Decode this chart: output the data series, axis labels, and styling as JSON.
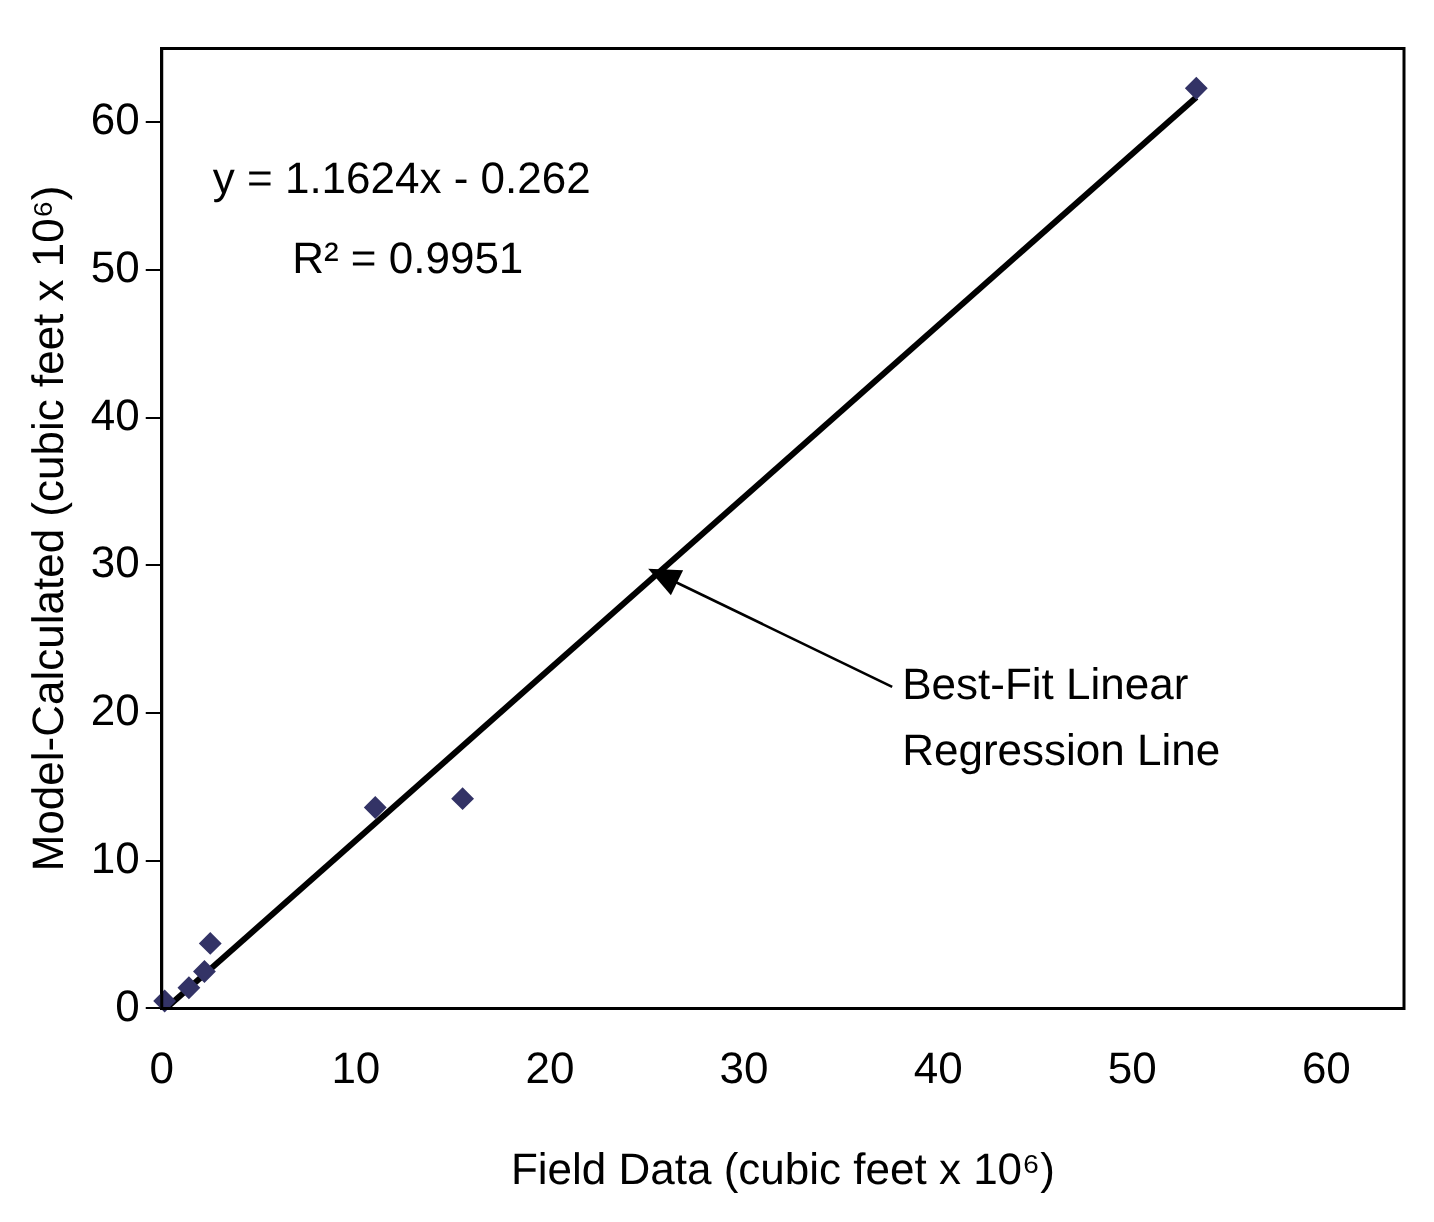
{
  "chart_data": {
    "type": "scatter",
    "xlabel": "Field Data (cubic feet x 10⁶)",
    "ylabel": "Model-Calculated (cubic feet x 10⁶)",
    "x": [
      0.15,
      1.4,
      2.2,
      2.5,
      11,
      15.5,
      53.3
    ],
    "series": [
      {
        "color": "#333366",
        "marker": "diamond",
        "values": [
          0.5,
          1.4,
          2.5,
          4.4,
          13.6,
          14.2,
          62.3
        ]
      },
      {
        "type": "line",
        "color": "#000000",
        "x": [
          0.3,
          53.3
        ],
        "values": [
          0.1,
          61.7
        ],
        "marker": "none",
        "line_style": "solid"
      }
    ],
    "xlim": [
      0,
      64
    ],
    "ylim": [
      0,
      65
    ],
    "xticks": [
      0,
      10,
      20,
      30,
      40,
      50,
      60
    ],
    "yticks": [
      0,
      10,
      20,
      30,
      40,
      50,
      60
    ],
    "grid": false,
    "legend": false,
    "annotations": [
      "y = 1.1624x - 0.262",
      "R² = 0.9951",
      "Best-Fit Linear\nRegression Line"
    ]
  }
}
